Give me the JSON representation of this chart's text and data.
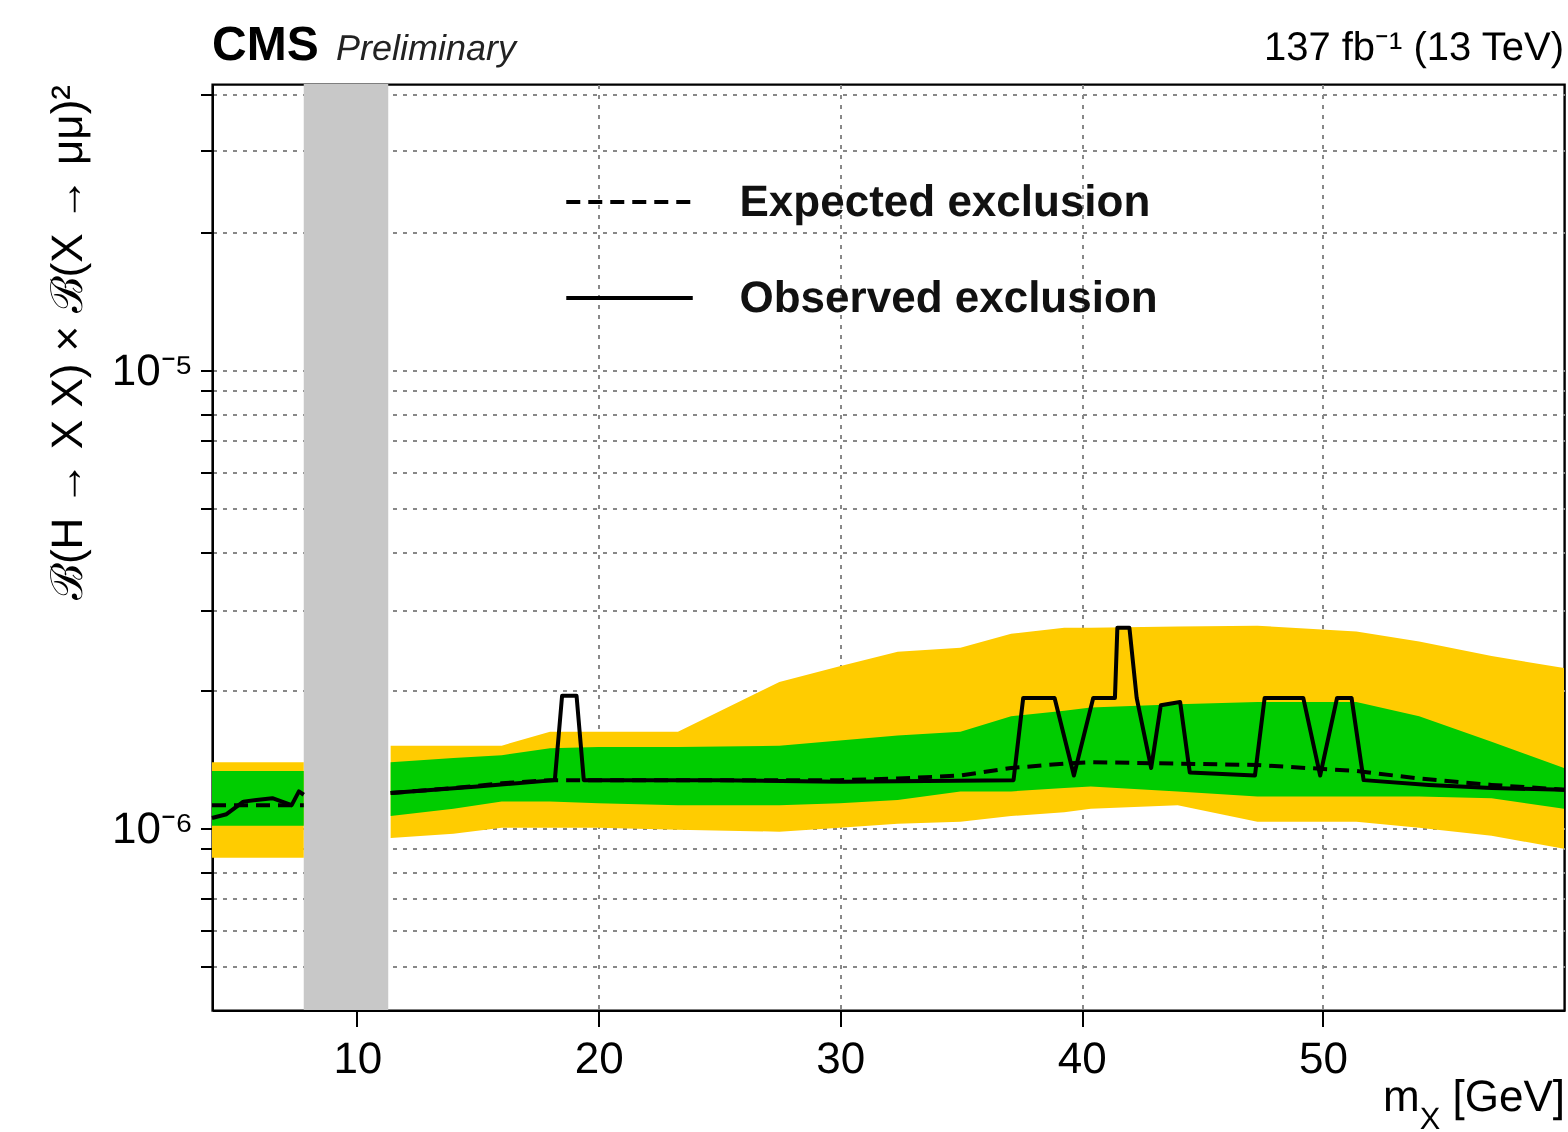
{
  "chart_data": {
    "type": "line",
    "title": "CMS",
    "subtitle": "Preliminary",
    "annotations": [
      "137 fb⁻¹ (13 TeV)"
    ],
    "xlabel": "m$_{X}$ [GeV]",
    "ylabel": "ℬ(H → X X) × ℬ(X → μμ)²",
    "xlim": [
      4,
      60
    ],
    "xticks": [
      10,
      20,
      30,
      40,
      50
    ],
    "ylim": [
      4e-07,
      4.2e-05
    ],
    "log": true,
    "yticks": [
      {
        "value": 5e-07,
        "label": null
      },
      {
        "value": 6e-07,
        "label": null
      },
      {
        "value": 7e-07,
        "label": null
      },
      {
        "value": 8e-07,
        "label": null
      },
      {
        "value": 9e-07,
        "label": null
      },
      {
        "value": 1e-06,
        "label": "10⁻⁶"
      },
      {
        "value": 2e-06,
        "label": null
      },
      {
        "value": 3e-06,
        "label": null
      },
      {
        "value": 4e-06,
        "label": null
      },
      {
        "value": 5e-06,
        "label": null
      },
      {
        "value": 6e-06,
        "label": null
      },
      {
        "value": 7e-06,
        "label": null
      },
      {
        "value": 8e-06,
        "label": null
      },
      {
        "value": 9e-06,
        "label": null
      },
      {
        "value": 1e-05,
        "label": "10⁻⁵"
      },
      {
        "value": 2e-05,
        "label": null
      },
      {
        "value": 3e-05,
        "label": null
      },
      {
        "value": 4e-05,
        "label": null
      }
    ],
    "grid": true,
    "legend": "top",
    "bands": [
      {
        "axis": "x",
        "from": 7.8,
        "to": 11.3,
        "color": "#c8c8c8"
      }
    ],
    "series": [
      {
        "type": "area",
        "color": "#ffcc00",
        "x": [
          4,
          5,
          6,
          7,
          7.8,
          9.5,
          11.4,
          14,
          16,
          18,
          20,
          23.3,
          27.5,
          30,
          32.4,
          35,
          37.1,
          39.3,
          40.4,
          44,
          47.3,
          51.4,
          54,
          57,
          60
        ],
        "values": [
          null,
          null,
          null,
          null,
          null,
          null,
          null,
          null,
          null,
          null,
          null,
          null,
          null,
          null,
          null,
          null,
          null,
          null,
          null,
          null,
          null,
          null,
          null,
          null,
          null
        ],
        "lower": [
          8.6e-07,
          8.6e-07,
          8.6e-07,
          8.6e-07,
          8.6e-07,
          null,
          9.5e-07,
          9.7e-07,
          1e-06,
          1e-06,
          1e-06,
          9.9e-07,
          9.8e-07,
          1e-06,
          1.02e-06,
          1.03e-06,
          1.06e-06,
          1.08e-06,
          1.1e-06,
          1.12e-06,
          1.03e-06,
          1.03e-06,
          1e-06,
          9.6e-07,
          9e-07
        ],
        "upper": [
          1.39e-06,
          1.39e-06,
          1.39e-06,
          1.39e-06,
          1.39e-06,
          null,
          1.51e-06,
          1.51e-06,
          1.51e-06,
          1.62e-06,
          1.62e-06,
          1.62e-06,
          2.08e-06,
          2.25e-06,
          2.42e-06,
          2.47e-06,
          2.65e-06,
          2.73e-06,
          2.73e-06,
          2.75e-06,
          2.76e-06,
          2.68e-06,
          2.55e-06,
          2.37e-06,
          2.23e-06
        ]
      },
      {
        "type": "area",
        "color": "#00cc00",
        "x": [
          4,
          5,
          6,
          7,
          7.8,
          9.5,
          11.4,
          14,
          16,
          18,
          20,
          23.3,
          27.5,
          30,
          32.4,
          35,
          37.1,
          39.3,
          40.4,
          44,
          47.3,
          51.4,
          54,
          57,
          60
        ],
        "values": [
          null,
          null,
          null,
          null,
          null,
          null,
          null,
          null,
          null,
          null,
          null,
          null,
          null,
          null,
          null,
          null,
          null,
          null,
          null,
          null,
          null,
          null,
          null,
          null,
          null
        ],
        "lower": [
          1.01e-06,
          1.01e-06,
          1.01e-06,
          1.01e-06,
          1.01e-06,
          null,
          1.06e-06,
          1.1e-06,
          1.14e-06,
          1.14e-06,
          1.13e-06,
          1.12e-06,
          1.12e-06,
          1.13e-06,
          1.15e-06,
          1.2e-06,
          1.2e-06,
          1.22e-06,
          1.23e-06,
          1.2e-06,
          1.17e-06,
          1.17e-06,
          1.17e-06,
          1.16e-06,
          1.1e-06
        ],
        "upper": [
          1.33e-06,
          1.33e-06,
          1.33e-06,
          1.33e-06,
          1.33e-06,
          null,
          1.39e-06,
          1.42e-06,
          1.44e-06,
          1.49e-06,
          1.5e-06,
          1.5e-06,
          1.51e-06,
          1.55e-06,
          1.59e-06,
          1.62e-06,
          1.75e-06,
          1.8e-06,
          1.83e-06,
          1.86e-06,
          1.88e-06,
          1.88e-06,
          1.75e-06,
          1.54e-06,
          1.35e-06
        ]
      },
      {
        "name": "Expected exclusion",
        "type": "line",
        "color": "#000000",
        "line_style": "dashed",
        "x": [
          4,
          5,
          6,
          7,
          7.8,
          9.5,
          11.4,
          14,
          16,
          18,
          20,
          23.3,
          27.5,
          30,
          32.4,
          35,
          37.1,
          39.3,
          40.4,
          44,
          47.3,
          51.4,
          54,
          57,
          60
        ],
        "values": [
          1.12e-06,
          1.12e-06,
          1.12e-06,
          1.12e-06,
          1.12e-06,
          null,
          1.19e-06,
          1.22e-06,
          1.25e-06,
          1.27e-06,
          1.27e-06,
          1.27e-06,
          1.27e-06,
          1.27e-06,
          1.28e-06,
          1.3e-06,
          1.35e-06,
          1.38e-06,
          1.39e-06,
          1.38e-06,
          1.37e-06,
          1.33e-06,
          1.28e-06,
          1.24e-06,
          1.21e-06
        ]
      },
      {
        "name": "Observed exclusion",
        "type": "line",
        "color": "#000000",
        "line_style": "solid",
        "x": [
          4,
          4.6,
          5.3,
          6.5,
          7.3,
          7.6,
          7.8,
          9.5,
          11.4,
          15,
          18.2,
          18.5,
          19.1,
          19.4,
          25,
          30,
          37.2,
          37.6,
          38.9,
          39.7,
          40.5,
          41.4,
          41.5,
          42,
          42.3,
          42.9,
          43.3,
          44.1,
          44.5,
          47.2,
          47.6,
          49.2,
          49.9,
          50.6,
          51.2,
          51.7,
          54.4,
          57,
          60
        ],
        "values": [
          1.05e-06,
          1.07e-06,
          1.14e-06,
          1.16e-06,
          1.12e-06,
          1.2e-06,
          1.18e-06,
          null,
          1.19e-06,
          1.23e-06,
          1.27e-06,
          1.94e-06,
          1.94e-06,
          1.27e-06,
          1.27e-06,
          1.26e-06,
          1.27e-06,
          1.92e-06,
          1.92e-06,
          1.3e-06,
          1.92e-06,
          1.92e-06,
          2.73e-06,
          2.73e-06,
          1.92e-06,
          1.35e-06,
          1.85e-06,
          1.88e-06,
          1.32e-06,
          1.3e-06,
          1.92e-06,
          1.92e-06,
          1.3e-06,
          1.92e-06,
          1.92e-06,
          1.27e-06,
          1.24e-06,
          1.22e-06,
          1.21e-06
        ]
      }
    ]
  }
}
